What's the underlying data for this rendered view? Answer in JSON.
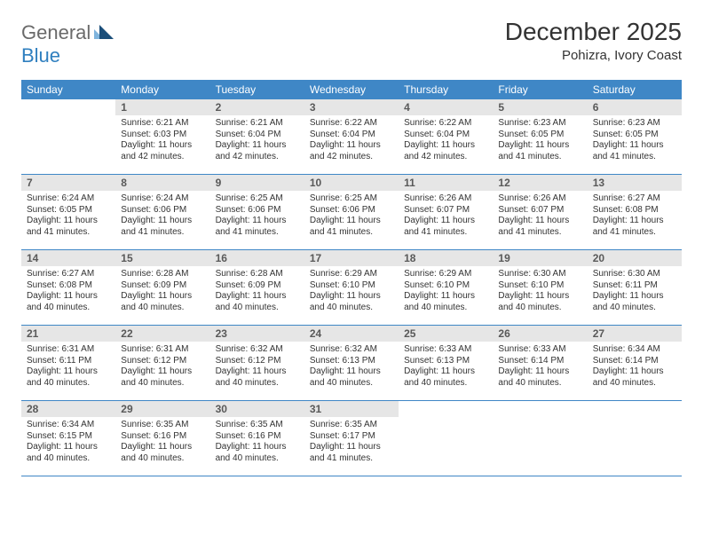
{
  "brand": {
    "word1": "General",
    "word2": "Blue"
  },
  "title": {
    "month": "December 2025",
    "location": "Pohizra, Ivory Coast"
  },
  "colors": {
    "header_bg": "#3f87c6",
    "header_text": "#ffffff",
    "daynum_bg": "#e6e6e6",
    "daynum_text": "#595959",
    "body_text": "#333333",
    "rule": "#3f87c6",
    "logo_gray": "#6a6a6a",
    "logo_blue": "#2f7fbf",
    "logo_mark_light": "#7fb4dd",
    "logo_mark_dark": "#1a4e7a"
  },
  "typography": {
    "title_fontsize_pt": 21,
    "location_fontsize_pt": 11,
    "header_fontsize_pt": 9,
    "daynum_fontsize_pt": 9,
    "body_fontsize_pt": 7.5
  },
  "weekdays": [
    "Sunday",
    "Monday",
    "Tuesday",
    "Wednesday",
    "Thursday",
    "Friday",
    "Saturday"
  ],
  "leading_blanks": 1,
  "days": [
    {
      "n": 1,
      "sunrise": "6:21 AM",
      "sunset": "6:03 PM",
      "daylight": "11 hours and 42 minutes."
    },
    {
      "n": 2,
      "sunrise": "6:21 AM",
      "sunset": "6:04 PM",
      "daylight": "11 hours and 42 minutes."
    },
    {
      "n": 3,
      "sunrise": "6:22 AM",
      "sunset": "6:04 PM",
      "daylight": "11 hours and 42 minutes."
    },
    {
      "n": 4,
      "sunrise": "6:22 AM",
      "sunset": "6:04 PM",
      "daylight": "11 hours and 42 minutes."
    },
    {
      "n": 5,
      "sunrise": "6:23 AM",
      "sunset": "6:05 PM",
      "daylight": "11 hours and 41 minutes."
    },
    {
      "n": 6,
      "sunrise": "6:23 AM",
      "sunset": "6:05 PM",
      "daylight": "11 hours and 41 minutes."
    },
    {
      "n": 7,
      "sunrise": "6:24 AM",
      "sunset": "6:05 PM",
      "daylight": "11 hours and 41 minutes."
    },
    {
      "n": 8,
      "sunrise": "6:24 AM",
      "sunset": "6:06 PM",
      "daylight": "11 hours and 41 minutes."
    },
    {
      "n": 9,
      "sunrise": "6:25 AM",
      "sunset": "6:06 PM",
      "daylight": "11 hours and 41 minutes."
    },
    {
      "n": 10,
      "sunrise": "6:25 AM",
      "sunset": "6:06 PM",
      "daylight": "11 hours and 41 minutes."
    },
    {
      "n": 11,
      "sunrise": "6:26 AM",
      "sunset": "6:07 PM",
      "daylight": "11 hours and 41 minutes."
    },
    {
      "n": 12,
      "sunrise": "6:26 AM",
      "sunset": "6:07 PM",
      "daylight": "11 hours and 41 minutes."
    },
    {
      "n": 13,
      "sunrise": "6:27 AM",
      "sunset": "6:08 PM",
      "daylight": "11 hours and 41 minutes."
    },
    {
      "n": 14,
      "sunrise": "6:27 AM",
      "sunset": "6:08 PM",
      "daylight": "11 hours and 40 minutes."
    },
    {
      "n": 15,
      "sunrise": "6:28 AM",
      "sunset": "6:09 PM",
      "daylight": "11 hours and 40 minutes."
    },
    {
      "n": 16,
      "sunrise": "6:28 AM",
      "sunset": "6:09 PM",
      "daylight": "11 hours and 40 minutes."
    },
    {
      "n": 17,
      "sunrise": "6:29 AM",
      "sunset": "6:10 PM",
      "daylight": "11 hours and 40 minutes."
    },
    {
      "n": 18,
      "sunrise": "6:29 AM",
      "sunset": "6:10 PM",
      "daylight": "11 hours and 40 minutes."
    },
    {
      "n": 19,
      "sunrise": "6:30 AM",
      "sunset": "6:10 PM",
      "daylight": "11 hours and 40 minutes."
    },
    {
      "n": 20,
      "sunrise": "6:30 AM",
      "sunset": "6:11 PM",
      "daylight": "11 hours and 40 minutes."
    },
    {
      "n": 21,
      "sunrise": "6:31 AM",
      "sunset": "6:11 PM",
      "daylight": "11 hours and 40 minutes."
    },
    {
      "n": 22,
      "sunrise": "6:31 AM",
      "sunset": "6:12 PM",
      "daylight": "11 hours and 40 minutes."
    },
    {
      "n": 23,
      "sunrise": "6:32 AM",
      "sunset": "6:12 PM",
      "daylight": "11 hours and 40 minutes."
    },
    {
      "n": 24,
      "sunrise": "6:32 AM",
      "sunset": "6:13 PM",
      "daylight": "11 hours and 40 minutes."
    },
    {
      "n": 25,
      "sunrise": "6:33 AM",
      "sunset": "6:13 PM",
      "daylight": "11 hours and 40 minutes."
    },
    {
      "n": 26,
      "sunrise": "6:33 AM",
      "sunset": "6:14 PM",
      "daylight": "11 hours and 40 minutes."
    },
    {
      "n": 27,
      "sunrise": "6:34 AM",
      "sunset": "6:14 PM",
      "daylight": "11 hours and 40 minutes."
    },
    {
      "n": 28,
      "sunrise": "6:34 AM",
      "sunset": "6:15 PM",
      "daylight": "11 hours and 40 minutes."
    },
    {
      "n": 29,
      "sunrise": "6:35 AM",
      "sunset": "6:16 PM",
      "daylight": "11 hours and 40 minutes."
    },
    {
      "n": 30,
      "sunrise": "6:35 AM",
      "sunset": "6:16 PM",
      "daylight": "11 hours and 40 minutes."
    },
    {
      "n": 31,
      "sunrise": "6:35 AM",
      "sunset": "6:17 PM",
      "daylight": "11 hours and 41 minutes."
    }
  ],
  "labels": {
    "sunrise": "Sunrise:",
    "sunset": "Sunset:",
    "daylight": "Daylight:"
  }
}
